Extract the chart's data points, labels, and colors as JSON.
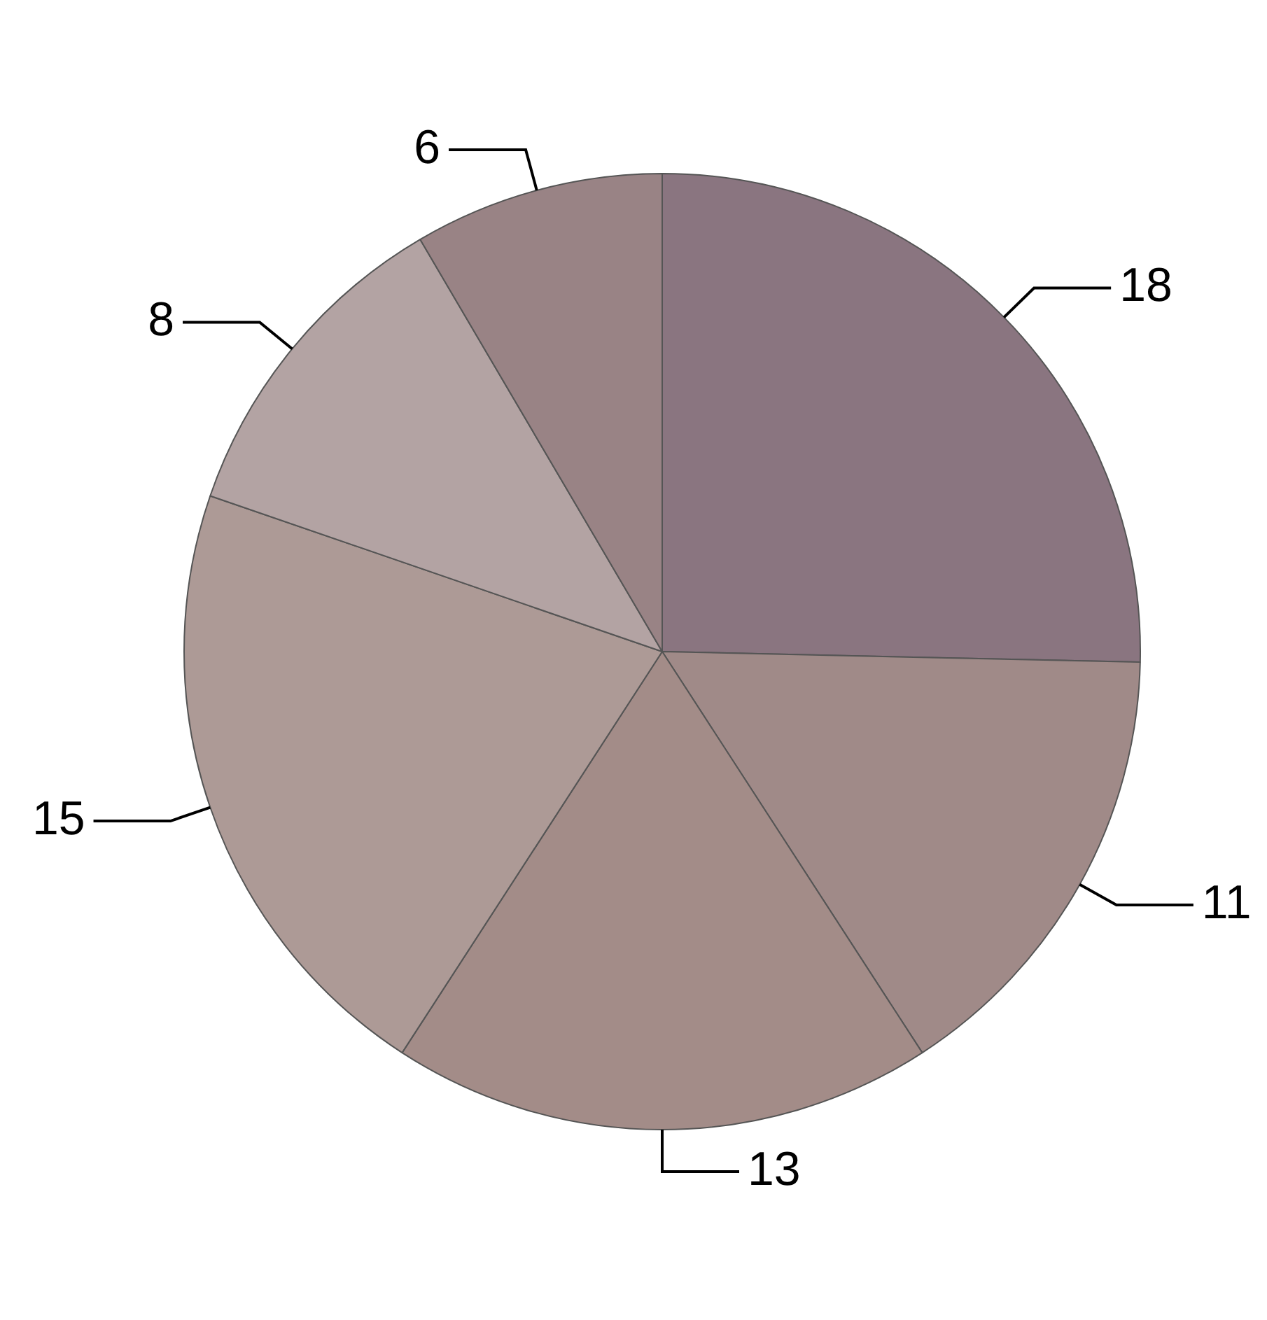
{
  "chart_data": {
    "type": "pie",
    "categories": [
      null,
      null,
      null,
      null,
      null,
      null
    ],
    "values": [
      18,
      11,
      13,
      15,
      8,
      6
    ],
    "colors": [
      "#8a7580",
      "#a08a88",
      "#a38c88",
      "#ad9a96",
      "#b3a3a3",
      "#998385"
    ],
    "data_labels": true,
    "legend": false
  }
}
